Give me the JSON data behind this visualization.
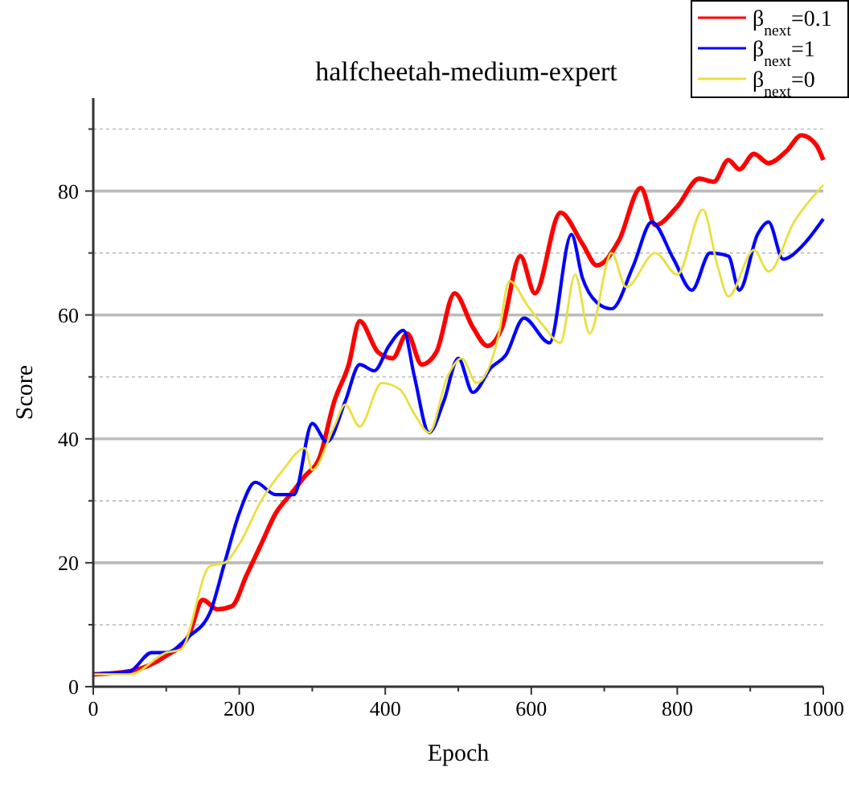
{
  "chart_data": {
    "type": "line",
    "title": "halfcheetah-medium-expert",
    "xlabel": "Epoch",
    "ylabel": "Score",
    "xlim": [
      0,
      1000
    ],
    "xticks": [
      0,
      {
        "value": 100,
        "label": null
      },
      200,
      {
        "value": 300,
        "label": null
      },
      400,
      {
        "value": 500,
        "label": null
      },
      600,
      {
        "value": 700,
        "label": null
      },
      800,
      {
        "value": 900,
        "label": null
      },
      1000
    ],
    "ylim": [
      0,
      95
    ],
    "yticks": [
      0,
      {
        "value": 10,
        "label": null
      },
      20,
      {
        "value": 30,
        "label": null
      },
      40,
      {
        "value": 50,
        "label": null
      },
      60,
      {
        "value": 70,
        "label": null
      },
      80,
      {
        "value": 90,
        "label": null
      }
    ],
    "grid": "y",
    "legend": "top right",
    "line_style": "solid",
    "series": [
      {
        "name": "β$_{next}$=0.1",
        "color": "#ff0000",
        "x": [
          0,
          50,
          100,
          130,
          150,
          170,
          190,
          210,
          230,
          250,
          270,
          290,
          310,
          330,
          350,
          365,
          390,
          410,
          430,
          450,
          470,
          495,
          520,
          540,
          560,
          585,
          605,
          640,
          670,
          690,
          720,
          750,
          770,
          800,
          830,
          850,
          870,
          885,
          905,
          925,
          950,
          970,
          990,
          1000
        ],
        "values": [
          2,
          2.5,
          5,
          8,
          14,
          12.5,
          13,
          18,
          23,
          28,
          31,
          34,
          37,
          46,
          52,
          59,
          54,
          53,
          57,
          52,
          54,
          63.5,
          58,
          55,
          58,
          69.5,
          63.5,
          76.5,
          71.5,
          68,
          72,
          80.5,
          74.5,
          77.5,
          82,
          81.5,
          85,
          83.5,
          86,
          84.5,
          86.5,
          89,
          87.5,
          85
        ]
      },
      {
        "name": "β$_{next}$=1",
        "color": "#0000ff",
        "x": [
          0,
          50,
          80,
          100,
          130,
          160,
          180,
          200,
          222,
          250,
          275,
          300,
          320,
          345,
          365,
          385,
          405,
          425,
          440,
          460,
          480,
          500,
          520,
          545,
          565,
          590,
          625,
          655,
          670,
          690,
          710,
          740,
          765,
          795,
          820,
          845,
          870,
          885,
          910,
          925,
          945,
          970,
          1000
        ],
        "values": [
          2,
          2.5,
          5.5,
          5.5,
          8,
          12,
          20,
          28,
          33,
          31,
          31,
          42.5,
          39.5,
          46,
          52,
          51,
          55,
          57.5,
          50,
          41,
          46,
          53,
          47.5,
          51.5,
          53.5,
          59.5,
          55.5,
          73,
          66,
          62,
          61,
          68,
          75,
          69,
          64,
          70,
          69.5,
          64,
          73,
          75,
          69,
          71,
          75.5
        ]
      },
      {
        "name": "β$_{next}$=0",
        "color": "#e8e040",
        "x": [
          0,
          50,
          100,
          120,
          160,
          180,
          200,
          230,
          260,
          290,
          300,
          330,
          345,
          365,
          395,
          420,
          440,
          460,
          485,
          505,
          525,
          555,
          570,
          595,
          615,
          640,
          660,
          680,
          710,
          730,
          770,
          800,
          835,
          855,
          870,
          905,
          925,
          960,
          1000
        ],
        "values": [
          2,
          2,
          5.5,
          6,
          19.5,
          20,
          23,
          30,
          35,
          38.5,
          35,
          42,
          45.5,
          42,
          49,
          48,
          44,
          41,
          50,
          53,
          49,
          56.5,
          65.5,
          61.5,
          58.5,
          55.5,
          66.5,
          57,
          70,
          64.5,
          70,
          66.5,
          77,
          68,
          63,
          70.5,
          67,
          75,
          81
        ]
      }
    ]
  }
}
